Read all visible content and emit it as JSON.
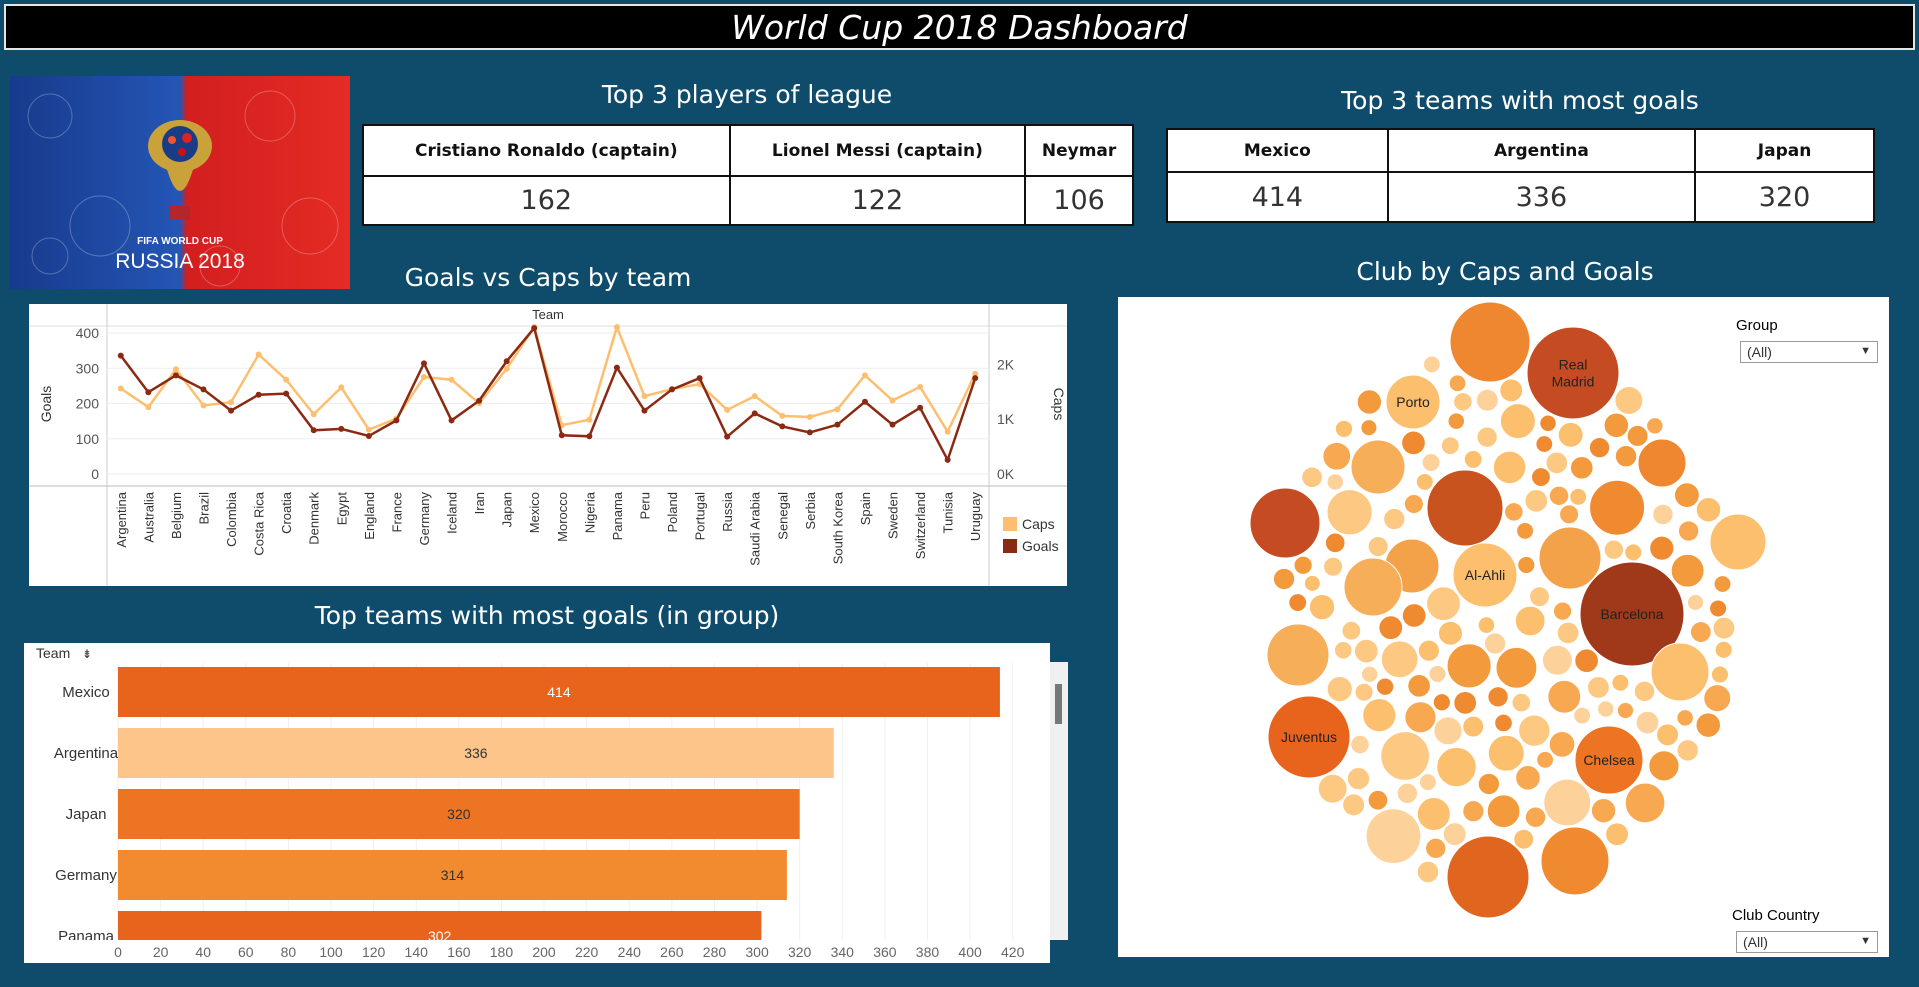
{
  "header": {
    "title": "World Cup 2018 Dashboard"
  },
  "logo": {
    "line1": "FIFA WORLD CUP",
    "line2": "RUSSIA 2018"
  },
  "top_players": {
    "title": "Top 3 players of league",
    "columns": [
      "Cristiano Ronaldo (captain)",
      "Lionel Messi (captain)",
      "Neymar"
    ],
    "values": [
      "162",
      "122",
      "106"
    ]
  },
  "top_teams": {
    "title": "Top 3 teams with most goals",
    "columns": [
      "Mexico",
      "Argentina",
      "Japan"
    ],
    "values": [
      "414",
      "336",
      "320"
    ]
  },
  "line_chart": {
    "title": "Goals vs Caps by team",
    "header": "Team",
    "y_left_label": "Goals",
    "y_right_label": "Caps",
    "y_left_ticks": [
      "400",
      "300",
      "200",
      "100",
      "0"
    ],
    "y_right_ticks": [
      "2K",
      "1K",
      "0K"
    ],
    "legend": [
      "Caps",
      "Goals"
    ]
  },
  "bar_chart": {
    "title": "Top teams with most goals (in group)",
    "header": "Team"
  },
  "bubble": {
    "title": "Club by Caps and Goals",
    "labels": [
      "Real Madrid",
      "Porto",
      "Al-Ahli",
      "Barcelona",
      "Juventus",
      "Chelsea"
    ]
  },
  "filters": {
    "group_label": "Group",
    "group_value": "(All)",
    "club_country_label": "Club Country",
    "club_country_value": "(All)"
  },
  "colors": {
    "caps": "#fdbf6f",
    "goals": "#8b2a12",
    "bar_dark": "#e8641d",
    "bar_light": "#fdc58a",
    "background": "#0f4c6b"
  },
  "chart_data": [
    {
      "type": "line",
      "title": "Goals vs Caps by team",
      "xlabel": "Team",
      "ylabel": "Goals",
      "y2label": "Caps",
      "ylim": [
        0,
        420
      ],
      "y2lim": [
        0,
        2700
      ],
      "categories": [
        "Argentina",
        "Australia",
        "Belgium",
        "Brazil",
        "Colombia",
        "Costa Rica",
        "Croatia",
        "Denmark",
        "Egypt",
        "England",
        "France",
        "Germany",
        "Iceland",
        "Iran",
        "Japan",
        "Mexico",
        "Morocco",
        "Nigeria",
        "Panama",
        "Peru",
        "Poland",
        "Portugal",
        "Russia",
        "Saudi Arabia",
        "Senegal",
        "Serbia",
        "South Korea",
        "Spain",
        "Sweden",
        "Switzerland",
        "Tunisia",
        "Uruguay"
      ],
      "series": [
        {
          "name": "Caps",
          "axis": "right",
          "values": [
            1560,
            1220,
            1910,
            1250,
            1310,
            2180,
            1720,
            1090,
            1580,
            810,
            1010,
            1770,
            1720,
            1290,
            1920,
            2680,
            890,
            990,
            2680,
            1420,
            1550,
            1640,
            1170,
            1420,
            1060,
            1040,
            1180,
            1800,
            1340,
            1590,
            770,
            1830
          ]
        },
        {
          "name": "Goals",
          "axis": "left",
          "values": [
            336,
            232,
            280,
            240,
            180,
            225,
            228,
            124,
            128,
            108,
            152,
            314,
            152,
            208,
            320,
            414,
            110,
            107,
            302,
            180,
            240,
            272,
            106,
            172,
            135,
            118,
            140,
            205,
            140,
            188,
            40,
            272
          ]
        }
      ],
      "grid": true,
      "legend": "right"
    },
    {
      "type": "bar",
      "title": "Top teams with most goals (in group)",
      "orientation": "horizontal",
      "categories": [
        "Mexico",
        "Argentina",
        "Japan",
        "Germany",
        "Panama"
      ],
      "values": [
        414,
        336,
        320,
        314,
        302
      ],
      "xlim": [
        0,
        430
      ],
      "x_ticks": [
        0,
        20,
        40,
        60,
        80,
        100,
        120,
        140,
        160,
        180,
        200,
        220,
        240,
        260,
        280,
        300,
        320,
        340,
        360,
        380,
        400,
        420
      ]
    }
  ]
}
